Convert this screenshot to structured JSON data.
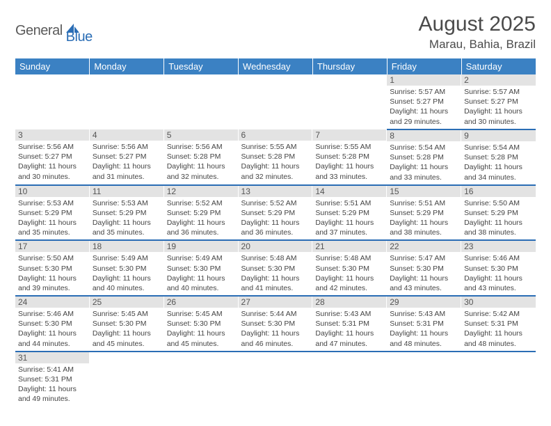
{
  "logo": {
    "part1": "General",
    "part2": "Blue"
  },
  "header": {
    "title": "August 2025",
    "location": "Marau, Bahia, Brazil"
  },
  "colors": {
    "header_bg": "#3b81c3",
    "row_border": "#2a6db5",
    "daynum_bg": "#e3e3e3",
    "logo_dark": "#5a5a5a",
    "logo_blue": "#2a6db5"
  },
  "dayNames": [
    "Sunday",
    "Monday",
    "Tuesday",
    "Wednesday",
    "Thursday",
    "Friday",
    "Saturday"
  ],
  "weeks": [
    [
      null,
      null,
      null,
      null,
      null,
      {
        "n": "1",
        "sr": "5:57 AM",
        "ss": "5:27 PM",
        "dl": "11 hours and 29 minutes."
      },
      {
        "n": "2",
        "sr": "5:57 AM",
        "ss": "5:27 PM",
        "dl": "11 hours and 30 minutes."
      }
    ],
    [
      {
        "n": "3",
        "sr": "5:56 AM",
        "ss": "5:27 PM",
        "dl": "11 hours and 30 minutes."
      },
      {
        "n": "4",
        "sr": "5:56 AM",
        "ss": "5:27 PM",
        "dl": "11 hours and 31 minutes."
      },
      {
        "n": "5",
        "sr": "5:56 AM",
        "ss": "5:28 PM",
        "dl": "11 hours and 32 minutes."
      },
      {
        "n": "6",
        "sr": "5:55 AM",
        "ss": "5:28 PM",
        "dl": "11 hours and 32 minutes."
      },
      {
        "n": "7",
        "sr": "5:55 AM",
        "ss": "5:28 PM",
        "dl": "11 hours and 33 minutes."
      },
      {
        "n": "8",
        "sr": "5:54 AM",
        "ss": "5:28 PM",
        "dl": "11 hours and 33 minutes."
      },
      {
        "n": "9",
        "sr": "5:54 AM",
        "ss": "5:28 PM",
        "dl": "11 hours and 34 minutes."
      }
    ],
    [
      {
        "n": "10",
        "sr": "5:53 AM",
        "ss": "5:29 PM",
        "dl": "11 hours and 35 minutes."
      },
      {
        "n": "11",
        "sr": "5:53 AM",
        "ss": "5:29 PM",
        "dl": "11 hours and 35 minutes."
      },
      {
        "n": "12",
        "sr": "5:52 AM",
        "ss": "5:29 PM",
        "dl": "11 hours and 36 minutes."
      },
      {
        "n": "13",
        "sr": "5:52 AM",
        "ss": "5:29 PM",
        "dl": "11 hours and 36 minutes."
      },
      {
        "n": "14",
        "sr": "5:51 AM",
        "ss": "5:29 PM",
        "dl": "11 hours and 37 minutes."
      },
      {
        "n": "15",
        "sr": "5:51 AM",
        "ss": "5:29 PM",
        "dl": "11 hours and 38 minutes."
      },
      {
        "n": "16",
        "sr": "5:50 AM",
        "ss": "5:29 PM",
        "dl": "11 hours and 38 minutes."
      }
    ],
    [
      {
        "n": "17",
        "sr": "5:50 AM",
        "ss": "5:30 PM",
        "dl": "11 hours and 39 minutes."
      },
      {
        "n": "18",
        "sr": "5:49 AM",
        "ss": "5:30 PM",
        "dl": "11 hours and 40 minutes."
      },
      {
        "n": "19",
        "sr": "5:49 AM",
        "ss": "5:30 PM",
        "dl": "11 hours and 40 minutes."
      },
      {
        "n": "20",
        "sr": "5:48 AM",
        "ss": "5:30 PM",
        "dl": "11 hours and 41 minutes."
      },
      {
        "n": "21",
        "sr": "5:48 AM",
        "ss": "5:30 PM",
        "dl": "11 hours and 42 minutes."
      },
      {
        "n": "22",
        "sr": "5:47 AM",
        "ss": "5:30 PM",
        "dl": "11 hours and 43 minutes."
      },
      {
        "n": "23",
        "sr": "5:46 AM",
        "ss": "5:30 PM",
        "dl": "11 hours and 43 minutes."
      }
    ],
    [
      {
        "n": "24",
        "sr": "5:46 AM",
        "ss": "5:30 PM",
        "dl": "11 hours and 44 minutes."
      },
      {
        "n": "25",
        "sr": "5:45 AM",
        "ss": "5:30 PM",
        "dl": "11 hours and 45 minutes."
      },
      {
        "n": "26",
        "sr": "5:45 AM",
        "ss": "5:30 PM",
        "dl": "11 hours and 45 minutes."
      },
      {
        "n": "27",
        "sr": "5:44 AM",
        "ss": "5:30 PM",
        "dl": "11 hours and 46 minutes."
      },
      {
        "n": "28",
        "sr": "5:43 AM",
        "ss": "5:31 PM",
        "dl": "11 hours and 47 minutes."
      },
      {
        "n": "29",
        "sr": "5:43 AM",
        "ss": "5:31 PM",
        "dl": "11 hours and 48 minutes."
      },
      {
        "n": "30",
        "sr": "5:42 AM",
        "ss": "5:31 PM",
        "dl": "11 hours and 48 minutes."
      }
    ],
    [
      {
        "n": "31",
        "sr": "5:41 AM",
        "ss": "5:31 PM",
        "dl": "11 hours and 49 minutes."
      },
      null,
      null,
      null,
      null,
      null,
      null
    ]
  ],
  "labels": {
    "sunrise": "Sunrise:",
    "sunset": "Sunset:",
    "daylight": "Daylight:"
  }
}
